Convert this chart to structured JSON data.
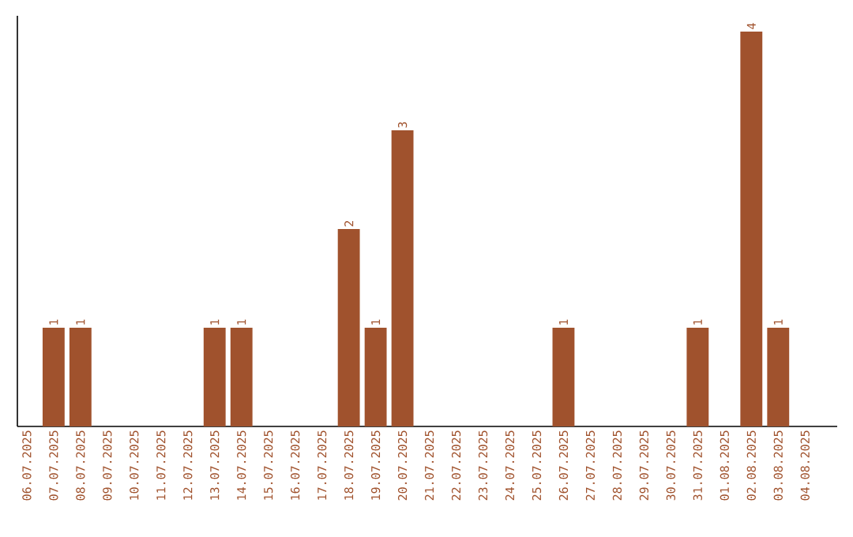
{
  "chart_data": {
    "type": "bar",
    "categories": [
      "06.07.2025",
      "07.07.2025",
      "08.07.2025",
      "09.07.2025",
      "10.07.2025",
      "11.07.2025",
      "12.07.2025",
      "13.07.2025",
      "14.07.2025",
      "15.07.2025",
      "16.07.2025",
      "17.07.2025",
      "18.07.2025",
      "19.07.2025",
      "20.07.2025",
      "21.07.2025",
      "22.07.2025",
      "23.07.2025",
      "24.07.2025",
      "25.07.2025",
      "26.07.2025",
      "27.07.2025",
      "28.07.2025",
      "29.07.2025",
      "30.07.2025",
      "31.07.2025",
      "01.08.2025",
      "02.08.2025",
      "03.08.2025",
      "04.08.2025"
    ],
    "values": [
      0,
      1,
      1,
      0,
      0,
      0,
      0,
      1,
      1,
      0,
      0,
      0,
      2,
      1,
      3,
      0,
      0,
      0,
      0,
      0,
      1,
      0,
      0,
      0,
      0,
      1,
      0,
      4,
      1,
      0
    ],
    "value_labels": [
      null,
      "1",
      "1",
      null,
      null,
      null,
      null,
      "1",
      "1",
      null,
      null,
      null,
      "2",
      "1",
      "3",
      null,
      null,
      null,
      null,
      null,
      "1",
      null,
      null,
      null,
      null,
      "1",
      null,
      "4",
      "1",
      null
    ],
    "color": "#a0522d"
  }
}
